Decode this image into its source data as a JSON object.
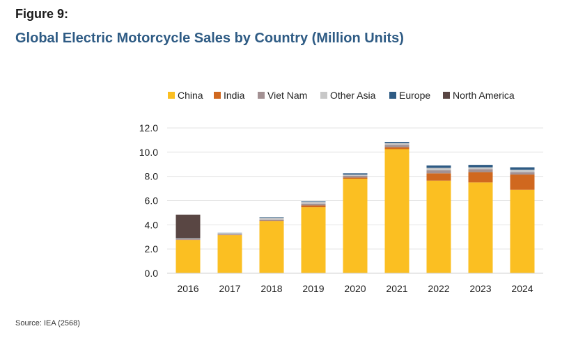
{
  "figure_label": "Figure 9:",
  "title": "Global Electric Motorcycle Sales by Country (Million Units)",
  "source": "Source: IEA (2568)",
  "chart_data": {
    "type": "bar",
    "stacked": true,
    "categories": [
      "2016",
      "2017",
      "2018",
      "2019",
      "2020",
      "2021",
      "2022",
      "2023",
      "2024"
    ],
    "series": [
      {
        "name": "China",
        "color": "#fbbf22",
        "values": [
          2.75,
          3.15,
          4.3,
          5.45,
          7.8,
          10.25,
          7.65,
          7.5,
          6.9
        ]
      },
      {
        "name": "India",
        "color": "#d0681f",
        "values": [
          0.02,
          0.02,
          0.03,
          0.15,
          0.1,
          0.15,
          0.6,
          0.85,
          1.25
        ]
      },
      {
        "name": "Viet Nam",
        "color": "#a39193",
        "values": [
          0.05,
          0.05,
          0.1,
          0.15,
          0.15,
          0.2,
          0.25,
          0.25,
          0.2
        ]
      },
      {
        "name": "Other Asia",
        "color": "#c8c8c8",
        "values": [
          0.05,
          0.1,
          0.15,
          0.15,
          0.1,
          0.15,
          0.2,
          0.15,
          0.2
        ]
      },
      {
        "name": "Europe",
        "color": "#2e5b84",
        "values": [
          0.02,
          0.02,
          0.05,
          0.05,
          0.1,
          0.1,
          0.2,
          0.2,
          0.2
        ]
      },
      {
        "name": "North America",
        "color": "#594643",
        "values": [
          1.95,
          0.0,
          0.0,
          0.0,
          0.0,
          0.0,
          0.0,
          0.0,
          0.0
        ]
      }
    ],
    "y_ticks": [
      "0.0",
      "2.0",
      "4.0",
      "6.0",
      "8.0",
      "10.0",
      "12.0"
    ],
    "ylim": [
      0,
      12
    ],
    "grid": true,
    "legend_position": "top"
  }
}
